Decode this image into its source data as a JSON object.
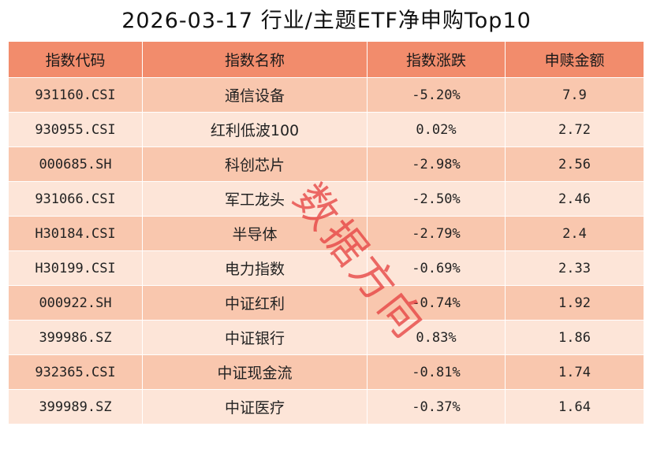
{
  "header": {
    "title": "2026-03-17 行业/主题ETF净申购Top10"
  },
  "table": {
    "columns": [
      "指数代码",
      "指数名称",
      "指数涨跌",
      "申赎金额"
    ],
    "rows": [
      [
        "931160.CSI",
        "通信设备",
        "-5.20%",
        "7.9"
      ],
      [
        "930955.CSI",
        "红利低波100",
        "0.02%",
        "2.72"
      ],
      [
        "000685.SH",
        "科创芯片",
        "-2.98%",
        "2.56"
      ],
      [
        "931066.CSI",
        "军工龙头",
        "-2.50%",
        "2.46"
      ],
      [
        "H30184.CSI",
        "半导体",
        "-2.79%",
        "2.4"
      ],
      [
        "H30199.CSI",
        "电力指数",
        "-0.69%",
        "2.33"
      ],
      [
        "000922.SH",
        "中证红利",
        "-0.74%",
        "1.92"
      ],
      [
        "399986.SZ",
        "中证银行",
        "0.83%",
        "1.86"
      ],
      [
        "932365.CSI",
        "中证现金流",
        "-0.81%",
        "1.74"
      ],
      [
        "399989.SZ",
        "中证医疗",
        "-0.37%",
        "1.64"
      ]
    ]
  },
  "watermark": "数据方向"
}
